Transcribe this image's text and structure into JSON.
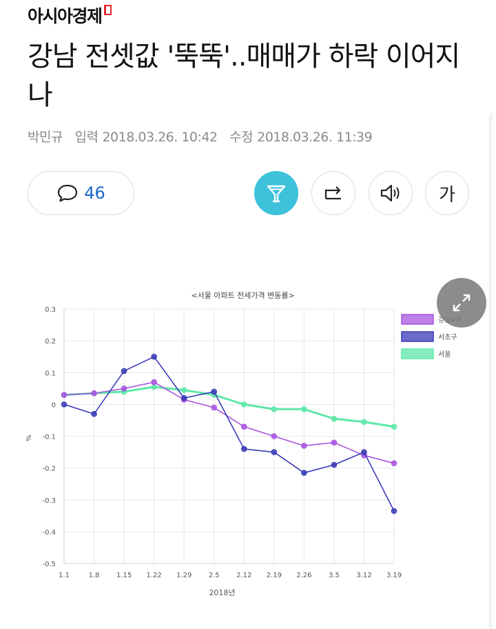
{
  "masthead": {
    "brand": "아시아경제"
  },
  "article": {
    "title": "강남 전셋값 '뚝뚝'..매매가 하락 이어지나",
    "author": "박민규",
    "published_label": "입력",
    "published": "2018.03.26. 10:42",
    "modified_label": "수정",
    "modified": "2018.03.26. 11:39"
  },
  "toolbar": {
    "comment_count": "46",
    "font_size_label": "가"
  },
  "chart_data": {
    "type": "line",
    "title": "<서울 아파트 전세가격 변동률>",
    "xlabel": "2018년",
    "ylabel": "%",
    "categories": [
      "1.1",
      "1.8",
      "1.15",
      "1.22",
      "1.29",
      "2.5",
      "2.12",
      "2.19",
      "2.26",
      "3.5",
      "3.12",
      "3.19"
    ],
    "ylim": [
      -0.5,
      0.3
    ],
    "yticks": [
      "0.3",
      "0.2",
      "0.1",
      "0",
      "-0.1",
      "-0.2",
      "-0.3",
      "-0.4",
      "-0.5"
    ],
    "grid": true,
    "legend_position": "top-right",
    "series": [
      {
        "name": "강남4구",
        "color": "#a855e0",
        "values": [
          0.03,
          0.035,
          0.05,
          0.07,
          0.015,
          -0.01,
          -0.07,
          -0.1,
          -0.13,
          -0.12,
          -0.16,
          -0.185
        ]
      },
      {
        "name": "서초구",
        "color": "#3a3ab8",
        "values": [
          0.0,
          -0.03,
          0.105,
          0.15,
          0.02,
          0.04,
          -0.14,
          -0.15,
          -0.215,
          -0.19,
          -0.15,
          -0.335
        ]
      },
      {
        "name": "서울",
        "color": "#5ee8a8",
        "values": [
          0.03,
          0.035,
          0.04,
          0.055,
          0.045,
          0.03,
          0.0,
          -0.015,
          -0.015,
          -0.045,
          -0.055,
          -0.07
        ]
      }
    ]
  }
}
